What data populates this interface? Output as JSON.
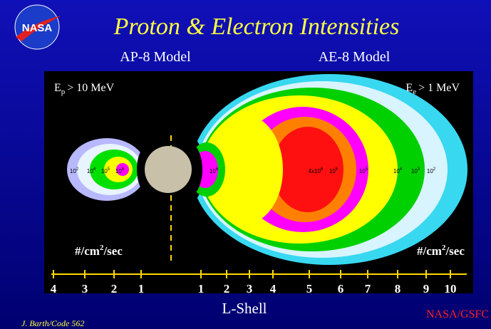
{
  "header": {
    "logo": "NASA",
    "title": "Proton & Electron Intensities",
    "models": [
      "AP-8 Model",
      "AE-8 Model"
    ]
  },
  "panels": [
    {
      "energy": {
        "symbol": "E",
        "sub": "p",
        "condition": "> 10 MeV"
      },
      "units": {
        "text": "#/cm",
        "exp": "2",
        "rest": "/sec"
      },
      "intensities": [
        {
          "base": "10",
          "exp": "2"
        },
        {
          "base": "10",
          "exp": "4"
        },
        {
          "base": "10",
          "exp": "5"
        },
        {
          "base": "10",
          "exp": "6"
        }
      ]
    },
    {
      "energy": {
        "symbol": "E",
        "sub": "e",
        "condition": "> 1 MeV"
      },
      "units": {
        "text": "#/cm",
        "exp": "2",
        "rest": "/sec"
      },
      "intensities": [
        {
          "base": "10",
          "exp": "6"
        },
        {
          "base": "4x10",
          "exp": "6"
        },
        {
          "base": "10",
          "exp": "6"
        },
        {
          "base": "10",
          "exp": "5"
        },
        {
          "base": "10",
          "exp": "4"
        },
        {
          "base": "10",
          "exp": "3"
        },
        {
          "base": "10",
          "exp": "2"
        }
      ]
    }
  ],
  "axis": {
    "left": [
      "4",
      "3",
      "2",
      "1"
    ],
    "right": [
      "1",
      "2",
      "3",
      "4",
      "5",
      "6",
      "7",
      "8",
      "9",
      "10"
    ],
    "label": "L-Shell"
  },
  "footer": {
    "credit": "J. Barth/Code 562",
    "org": "NASA/GSFC"
  }
}
